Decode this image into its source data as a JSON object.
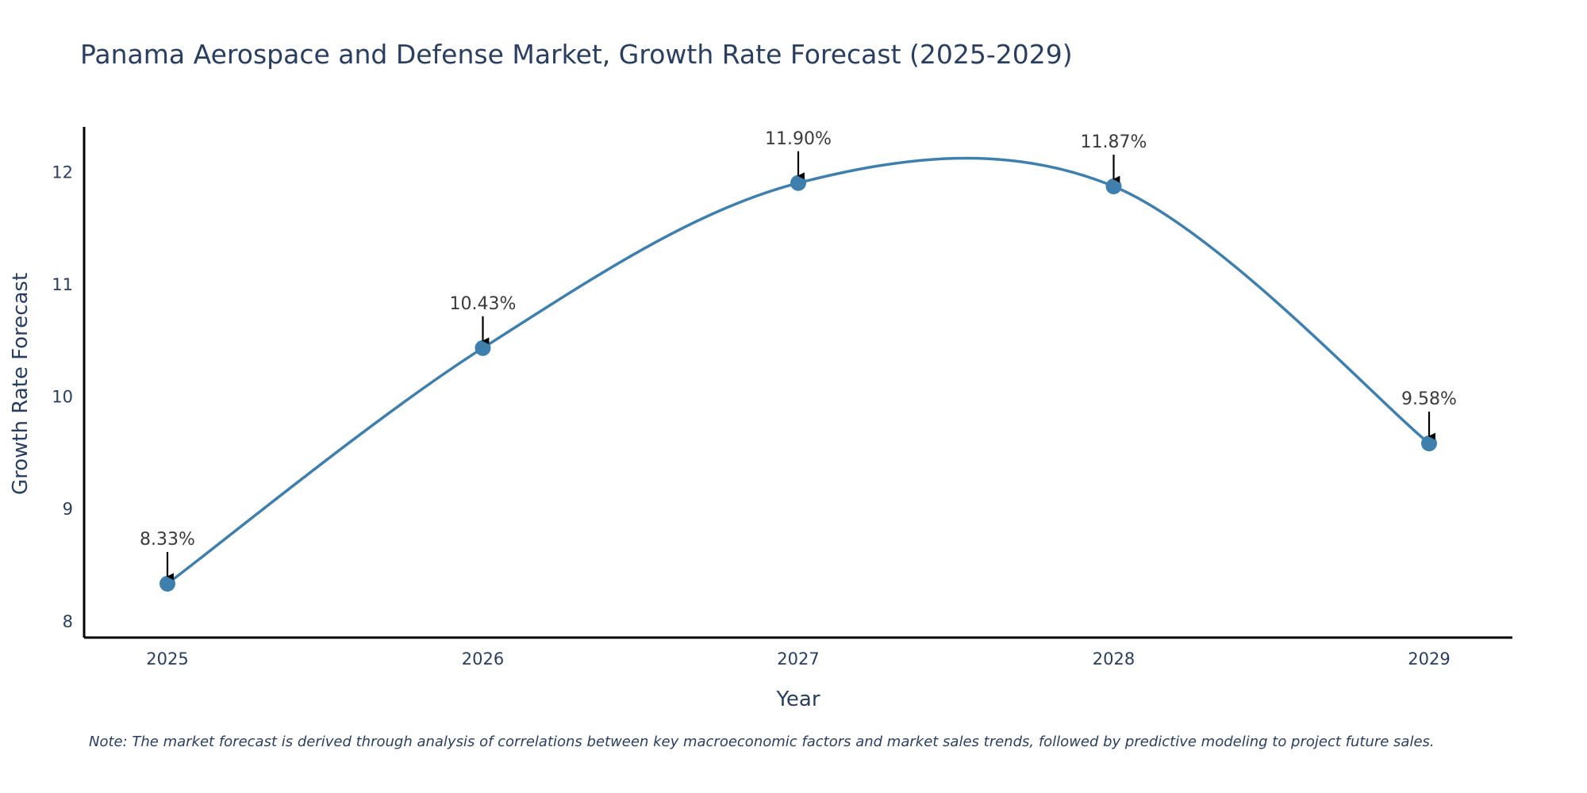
{
  "chart_data": {
    "type": "line",
    "title": "Panama Aerospace and Defense Market, Growth Rate Forecast (2025-2029)",
    "xlabel": "Year",
    "ylabel": "Growth Rate Forecast",
    "x": [
      "2025",
      "2026",
      "2027",
      "2028",
      "2029"
    ],
    "series": [
      {
        "name": "Growth Rate Forecast",
        "values": [
          8.33,
          10.43,
          11.9,
          11.87,
          9.58
        ]
      }
    ],
    "annotations": [
      "8.33%",
      "10.43%",
      "11.90%",
      "11.87%",
      "9.58%"
    ],
    "yticks": [
      "8",
      "9",
      "10",
      "11",
      "12"
    ],
    "ylim": [
      7.85,
      12.4
    ],
    "grid": false,
    "line_color": "#3f7fad",
    "marker_color": "#3f7fad",
    "arrow_color": "#000000",
    "note": "Note: The market forecast is derived through analysis of correlations between key macroeconomic factors and market sales trends, followed by predictive modeling to project future sales."
  }
}
